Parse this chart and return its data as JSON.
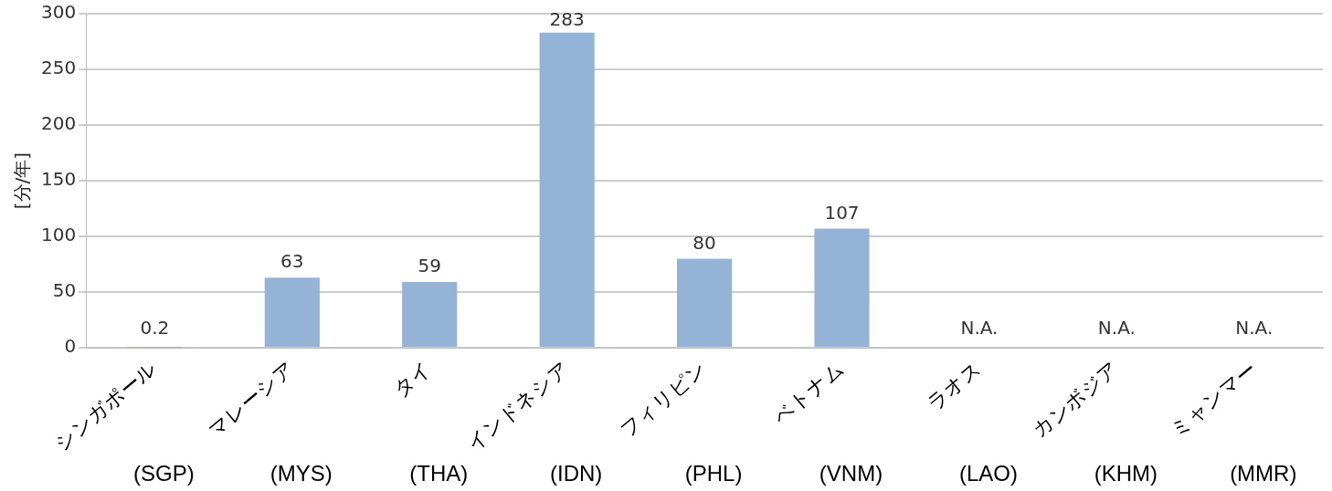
{
  "chart_data": {
    "type": "bar",
    "ylabel": "[分/年]",
    "categories": [
      "シンガポール",
      "マレーシア",
      "タイ",
      "インドネシア",
      "フィリピン",
      "ベトナム",
      "ラオス",
      "カンボジア",
      "ミャンマー"
    ],
    "values": [
      0.2,
      63,
      59,
      283,
      80,
      107,
      null,
      null,
      null
    ],
    "value_labels": [
      "0.2",
      "63",
      "59",
      "283",
      "80",
      "107",
      "N.A.",
      "N.A.",
      "N.A."
    ],
    "color": "#95b3d7",
    "ylim": [
      0,
      300
    ],
    "yticks": [
      0,
      50,
      100,
      150,
      200,
      250,
      300
    ],
    "grid": "y",
    "legend": false,
    "annotations": [
      "(SGP)",
      "(MYS)",
      "(THA)",
      "(IDN)",
      "(PHL)",
      "(VNM)",
      "(LAO)",
      "(KHM)",
      "(MMR)"
    ]
  }
}
